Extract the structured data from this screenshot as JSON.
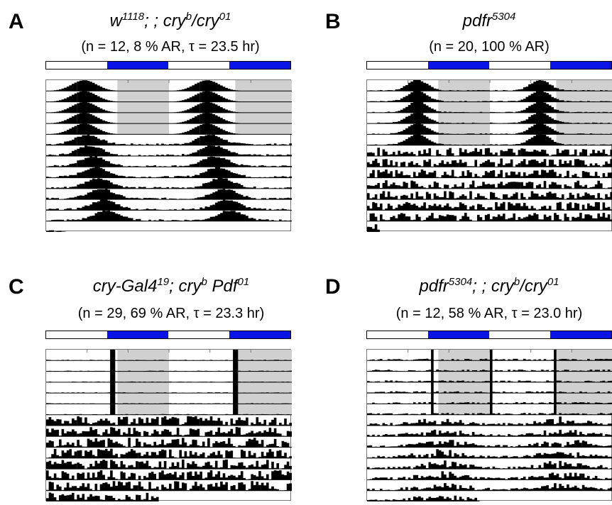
{
  "panels": [
    {
      "letter": "A",
      "title_parts": [
        "w",
        "1118",
        "; ; cry",
        "b",
        "/cry",
        "01"
      ],
      "stats": "(n = 12, 8 % AR, τ = 23.5 hr)",
      "ld_pattern": [
        "light",
        "dark",
        "light",
        "dark"
      ],
      "colors": {
        "dark_bar": "#0a14e6",
        "shade": "#d0d0d0",
        "activity": "#000000"
      }
    },
    {
      "letter": "B",
      "title_parts": [
        "pdfr",
        "5304"
      ],
      "stats": "(n = 20, 100 % AR)",
      "ld_pattern": [
        "light",
        "dark",
        "light",
        "dark"
      ],
      "colors": {
        "dark_bar": "#0a14e6",
        "shade": "#d0d0d0",
        "activity": "#000000"
      }
    },
    {
      "letter": "C",
      "title_parts": [
        "cry-Gal4",
        "19",
        "; cry",
        "b",
        " Pdf",
        "01"
      ],
      "stats": "(n = 29, 69 % AR, τ = 23.3 hr)",
      "ld_pattern": [
        "light",
        "dark",
        "light",
        "dark"
      ],
      "colors": {
        "dark_bar": "#0a14e6",
        "shade": "#d0d0d0",
        "activity": "#000000"
      }
    },
    {
      "letter": "D",
      "title_parts": [
        "pdfr",
        "5304",
        "; ; cry",
        "b",
        "/cry",
        "01"
      ],
      "stats": "(n = 12, 58 % AR, τ = 23.0 hr)",
      "ld_pattern": [
        "light",
        "dark",
        "light",
        "dark"
      ],
      "colors": {
        "dark_bar": "#0a14e6",
        "shade": "#d0d0d0",
        "activity": "#000000"
      }
    }
  ]
}
